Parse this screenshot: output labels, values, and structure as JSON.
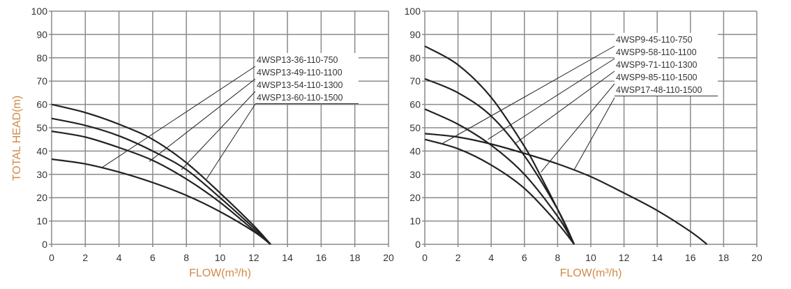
{
  "chart_data": [
    {
      "type": "line",
      "xlabel": "FLOW(m³/h)",
      "ylabel": "TOTAL HEAD(m)",
      "xlim": [
        0,
        20
      ],
      "ylim": [
        0,
        100
      ],
      "xticks": [
        "0",
        "2",
        "4",
        "6",
        "8",
        "10",
        "12",
        "14",
        "16",
        "18",
        "20"
      ],
      "yticks": [
        "0",
        "10",
        "20",
        "30",
        "40",
        "50",
        "60",
        "70",
        "80",
        "90",
        "100"
      ],
      "grid": true,
      "legend_placement": "top-right",
      "line_color": "#222222",
      "series": [
        {
          "name": "4WSP13-36-110-750",
          "x": [
            0,
            2,
            4,
            6,
            8,
            10,
            12,
            13
          ],
          "y": [
            36.5,
            34.5,
            31,
            26.5,
            21,
            14,
            5.5,
            0
          ],
          "label_point": [
            3.0,
            33
          ]
        },
        {
          "name": "4WSP13-49-110-1100",
          "x": [
            0,
            2,
            4,
            6,
            8,
            10,
            12,
            13
          ],
          "y": [
            48.5,
            46,
            41.5,
            36,
            28,
            18,
            6,
            0
          ],
          "label_point": [
            5.8,
            35.5
          ]
        },
        {
          "name": "4WSP13-54-110-1300",
          "x": [
            0,
            2,
            4,
            6,
            8,
            10,
            12,
            13
          ],
          "y": [
            54,
            51,
            46.5,
            40,
            32,
            20,
            7,
            0
          ],
          "label_point": [
            7.7,
            32
          ]
        },
        {
          "name": "4WSP13-60-110-1500",
          "x": [
            0,
            2,
            4,
            6,
            8,
            10,
            12,
            13
          ],
          "y": [
            60,
            56.5,
            51.5,
            45,
            35,
            22,
            8,
            0
          ],
          "label_point": [
            9.2,
            28
          ]
        }
      ]
    },
    {
      "type": "line",
      "xlabel": "FLOW(m³/h)",
      "ylabel": "",
      "xlim": [
        0,
        20
      ],
      "ylim": [
        0,
        100
      ],
      "xticks": [
        "0",
        "2",
        "4",
        "6",
        "8",
        "10",
        "12",
        "14",
        "16",
        "18",
        "20"
      ],
      "yticks": [
        "0",
        "10",
        "20",
        "30",
        "40",
        "50",
        "60",
        "70",
        "80",
        "90",
        "100"
      ],
      "grid": true,
      "legend_placement": "top-right",
      "line_color": "#222222",
      "series": [
        {
          "name": "4WSP9-45-110-750",
          "x": [
            0,
            2,
            4,
            6,
            8,
            9
          ],
          "y": [
            45,
            41,
            34,
            24,
            9,
            0
          ],
          "label_point": [
            1.0,
            43
          ]
        },
        {
          "name": "4WSP9-58-110-1100",
          "x": [
            0,
            2,
            4,
            6,
            8,
            9
          ],
          "y": [
            58,
            51.5,
            42.5,
            30,
            12,
            0
          ],
          "label_point": [
            3.8,
            45
          ]
        },
        {
          "name": "4WSP9-71-110-1300",
          "x": [
            0,
            2,
            4,
            6,
            8,
            9
          ],
          "y": [
            71,
            65,
            55,
            38,
            15,
            0
          ],
          "label_point": [
            5.4,
            43
          ]
        },
        {
          "name": "4WSP9-85-110-1500",
          "x": [
            0,
            2,
            4,
            6,
            7,
            8,
            9
          ],
          "y": [
            85,
            77,
            63,
            42,
            29,
            15,
            0
          ],
          "label_point": [
            7.0,
            31
          ]
        },
        {
          "name": "4WSP17-48-110-1500",
          "x": [
            0,
            2,
            4,
            6,
            8,
            10,
            12,
            14,
            16,
            17
          ],
          "y": [
            47.5,
            46,
            43,
            39,
            34.5,
            29,
            22,
            14.5,
            5.5,
            0
          ],
          "label_point": [
            9.0,
            32
          ]
        }
      ]
    }
  ]
}
